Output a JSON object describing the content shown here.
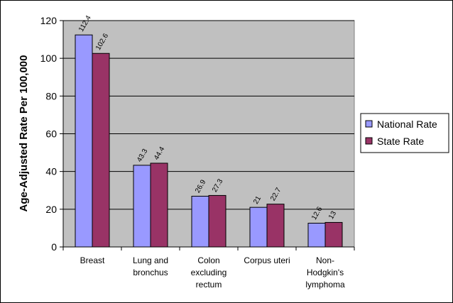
{
  "chart_data": {
    "type": "bar",
    "title": "",
    "xlabel": "",
    "ylabel": "Age-Adjusted Rate Per 100,000",
    "ylim": [
      0,
      120
    ],
    "yticks": [
      0,
      20,
      40,
      60,
      80,
      100,
      120
    ],
    "grid": true,
    "legend_position": "right",
    "categories": [
      [
        "Breast"
      ],
      [
        "Lung and",
        "bronchus"
      ],
      [
        "Colon",
        "excluding",
        "rectum"
      ],
      [
        "Corpus uteri"
      ],
      [
        "Non-",
        "Hodgkin's",
        "lymphoma"
      ]
    ],
    "series": [
      {
        "name": "National Rate",
        "color": "#9999FF",
        "values": [
          112.4,
          43.3,
          26.9,
          21,
          12.6
        ],
        "labels": [
          "112.4",
          "43.3",
          "26.9",
          "21",
          "12.6"
        ]
      },
      {
        "name": "State Rate",
        "color": "#993366",
        "values": [
          102.6,
          44.4,
          27.3,
          22.7,
          13
        ],
        "labels": [
          "102.6",
          "44.4",
          "27.3",
          "22.7",
          "13"
        ]
      }
    ],
    "plot_background": "#C0C0C0"
  }
}
